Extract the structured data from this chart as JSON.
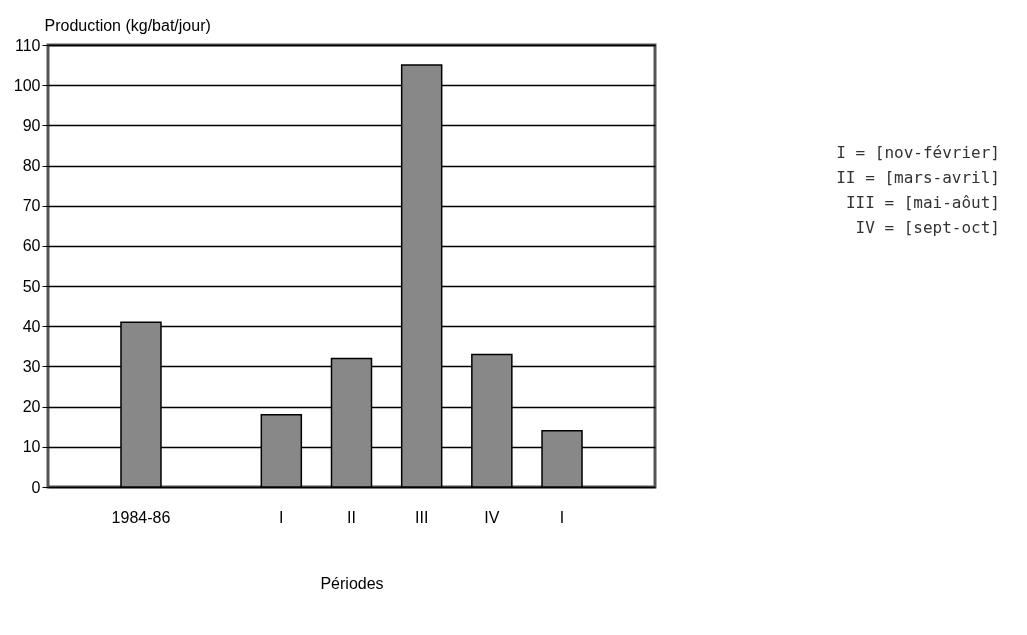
{
  "chart_data": {
    "type": "bar",
    "ylabel": "Production (kg/bat/jour)",
    "xlabel": "Périodes",
    "categories": [
      "1984-86",
      null,
      "I",
      "II",
      "III",
      "IV",
      "I"
    ],
    "values": [
      41,
      null,
      18,
      32,
      105,
      33,
      14
    ],
    "color": "#888888",
    "ylim": [
      0,
      110
    ],
    "yticks": [
      0,
      10,
      20,
      30,
      40,
      50,
      60,
      70,
      80,
      90,
      100,
      110
    ],
    "grid": "y",
    "annotations": [
      "I = [nov-février]",
      "II = [mars-avril]",
      "III = [mai-aôut]",
      "IV = [sept-oct]"
    ]
  }
}
